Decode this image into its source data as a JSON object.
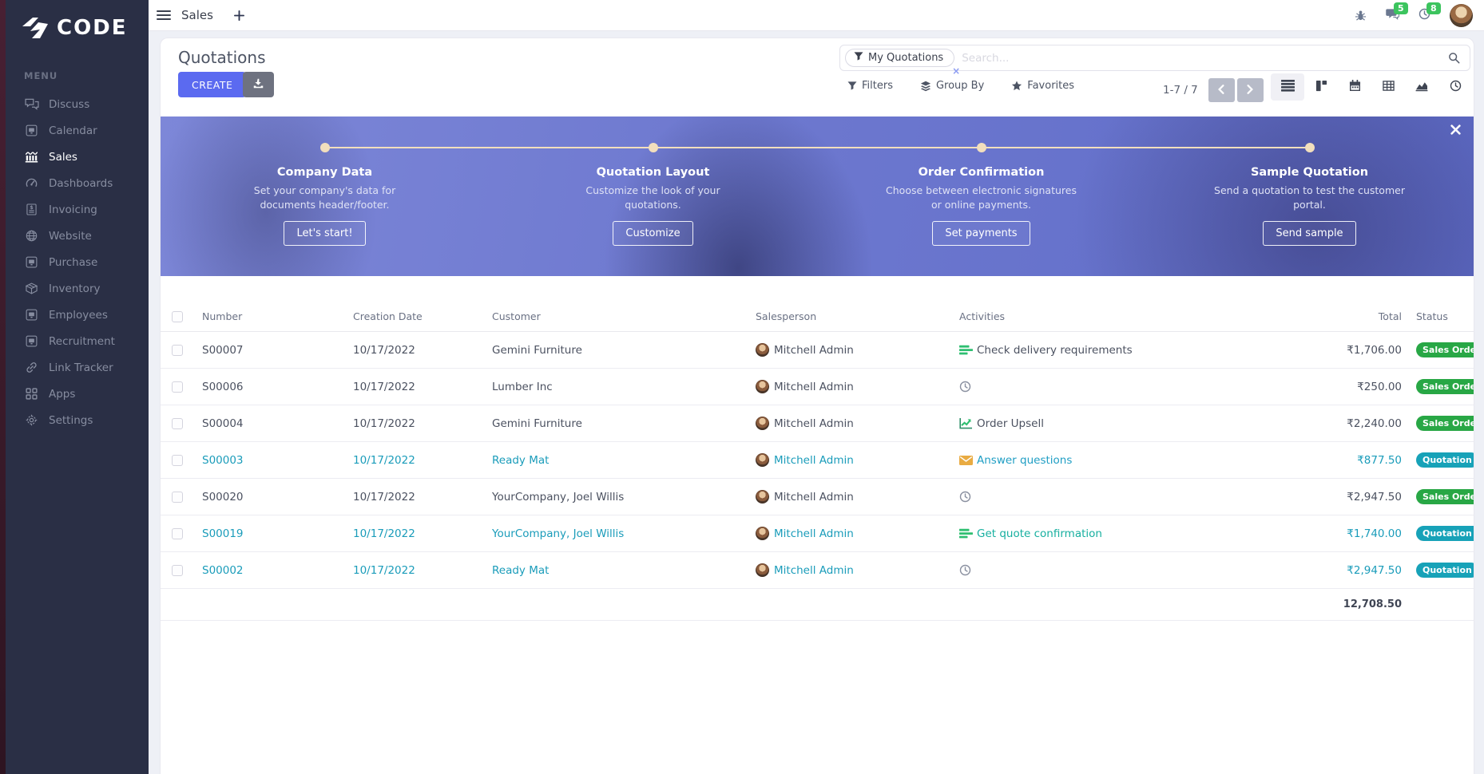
{
  "brand": {
    "logo_text": "CODE"
  },
  "topbar": {
    "app_name": "Sales",
    "message_badge": "5",
    "activity_badge": "8"
  },
  "sidebar": {
    "menu_label": "MENU",
    "items": [
      {
        "id": "discuss",
        "label": "Discuss",
        "icon": "discuss",
        "active": false
      },
      {
        "id": "calendar",
        "label": "Calendar",
        "icon": "module",
        "active": false
      },
      {
        "id": "sales",
        "label": "Sales",
        "icon": "sales",
        "active": true
      },
      {
        "id": "dashboards",
        "label": "Dashboards",
        "icon": "dashboards",
        "active": false
      },
      {
        "id": "invoicing",
        "label": "Invoicing",
        "icon": "invoicing",
        "active": false
      },
      {
        "id": "website",
        "label": "Website",
        "icon": "website",
        "active": false
      },
      {
        "id": "purchase",
        "label": "Purchase",
        "icon": "module",
        "active": false
      },
      {
        "id": "inventory",
        "label": "Inventory",
        "icon": "inventory",
        "active": false
      },
      {
        "id": "employees",
        "label": "Employees",
        "icon": "module",
        "active": false
      },
      {
        "id": "recruitment",
        "label": "Recruitment",
        "icon": "module",
        "active": false
      },
      {
        "id": "link-tracker",
        "label": "Link Tracker",
        "icon": "link",
        "active": false
      },
      {
        "id": "apps",
        "label": "Apps",
        "icon": "apps",
        "active": false
      },
      {
        "id": "settings",
        "label": "Settings",
        "icon": "gear",
        "active": false
      }
    ]
  },
  "control": {
    "title": "Quotations",
    "create_label": "CREATE",
    "facet_label": "My Quotations",
    "facet_remove": "×",
    "search_placeholder": "Search...",
    "filters_label": "Filters",
    "group_by_label": "Group By",
    "favorites_label": "Favorites",
    "pager_text": "1-7 / 7"
  },
  "banner": {
    "steps": [
      {
        "title": "Company Data",
        "description": "Set your company's data for documents header/footer.",
        "button": "Let's start!"
      },
      {
        "title": "Quotation Layout",
        "description": "Customize the look of your quotations.",
        "button": "Customize"
      },
      {
        "title": "Order Confirmation",
        "description": "Choose between electronic signatures or online payments.",
        "button": "Set payments"
      },
      {
        "title": "Sample Quotation",
        "description": "Send a quotation to test the customer portal.",
        "button": "Send sample"
      }
    ]
  },
  "table": {
    "columns": [
      "Number",
      "Creation Date",
      "Customer",
      "Salesperson",
      "Activities",
      "Total",
      "Status"
    ],
    "rows": [
      {
        "number": "S00007",
        "date": "10/17/2022",
        "customer": "Gemini Furniture",
        "salesperson": "Mitchell Admin",
        "activity_icon": "tasks",
        "activity_label": "Check delivery requirements",
        "activity_color": "dark",
        "total": "₹1,706.00",
        "status": "Sales Order",
        "status_variant": "green",
        "highlight": false
      },
      {
        "number": "S00006",
        "date": "10/17/2022",
        "customer": "Lumber Inc",
        "salesperson": "Mitchell Admin",
        "activity_icon": "clock",
        "activity_label": "",
        "activity_color": "dark",
        "total": "₹250.00",
        "status": "Sales Order",
        "status_variant": "green",
        "highlight": false
      },
      {
        "number": "S00004",
        "date": "10/17/2022",
        "customer": "Gemini Furniture",
        "salesperson": "Mitchell Admin",
        "activity_icon": "chart",
        "activity_label": "Order Upsell",
        "activity_color": "dark",
        "total": "₹2,240.00",
        "status": "Sales Order",
        "status_variant": "green",
        "highlight": false
      },
      {
        "number": "S00003",
        "date": "10/17/2022",
        "customer": "Ready Mat",
        "salesperson": "Mitchell Admin",
        "activity_icon": "envelope",
        "activity_label": "Answer questions",
        "activity_color": "blue",
        "total": "₹877.50",
        "status": "Quotation",
        "status_variant": "teal",
        "highlight": true
      },
      {
        "number": "S00020",
        "date": "10/17/2022",
        "customer": "YourCompany, Joel Willis",
        "salesperson": "Mitchell Admin",
        "activity_icon": "clock",
        "activity_label": "",
        "activity_color": "dark",
        "total": "₹2,947.50",
        "status": "Sales Order",
        "status_variant": "green",
        "highlight": false
      },
      {
        "number": "S00019",
        "date": "10/17/2022",
        "customer": "YourCompany, Joel Willis",
        "salesperson": "Mitchell Admin",
        "activity_icon": "tasks",
        "activity_label": "Get quote confirmation",
        "activity_color": "teal",
        "total": "₹1,740.00",
        "status": "Quotation Sent",
        "status_variant": "teal",
        "highlight": true
      },
      {
        "number": "S00002",
        "date": "10/17/2022",
        "customer": "Ready Mat",
        "salesperson": "Mitchell Admin",
        "activity_icon": "clock",
        "activity_label": "",
        "activity_color": "dark",
        "total": "₹2,947.50",
        "status": "Quotation",
        "status_variant": "teal",
        "highlight": true
      }
    ],
    "footer_total": "12,708.50"
  },
  "colors": {
    "accent": "#5b6af0",
    "sidebar_bg": "#2a2f45",
    "highlight_row": "#1a9cba",
    "status_green": "#28a745",
    "status_teal": "#17a2b8",
    "badge_green_bg": "#3cc45e",
    "banner_base": "#6d78cf"
  }
}
